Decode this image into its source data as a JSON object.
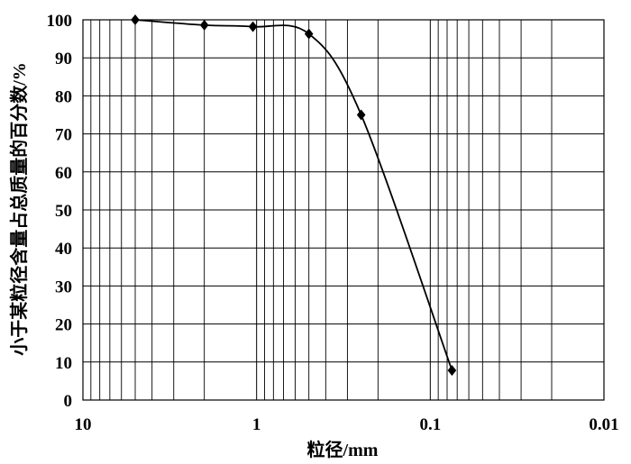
{
  "chart_data": {
    "type": "scatter",
    "title": "",
    "xlabel": "粒径/mm",
    "ylabel": "小于某粒径含量占总质量的百分数/%",
    "x_scale": "log",
    "x_reversed": true,
    "xlim": [
      10,
      0.01
    ],
    "ylim": [
      0,
      100
    ],
    "x_ticks": [
      10,
      1,
      0.1,
      0.01
    ],
    "x_tick_labels": [
      "10",
      "1",
      "0.1",
      "0.01"
    ],
    "y_ticks": [
      0,
      10,
      20,
      30,
      40,
      50,
      60,
      70,
      80,
      90,
      100
    ],
    "y_tick_labels": [
      "0",
      "10",
      "20",
      "30",
      "40",
      "50",
      "60",
      "70",
      "80",
      "90",
      "100"
    ],
    "grid": "vertical log minor and major lines, horizontal lines at every 10",
    "marker": "diamond",
    "line": "smooth",
    "series": [
      {
        "x": [
          5,
          2,
          1.05,
          0.5,
          0.25,
          0.075
        ],
        "y": [
          100,
          98.6,
          98.2,
          96.3,
          75,
          7.8
        ]
      }
    ],
    "color": "#000000"
  }
}
